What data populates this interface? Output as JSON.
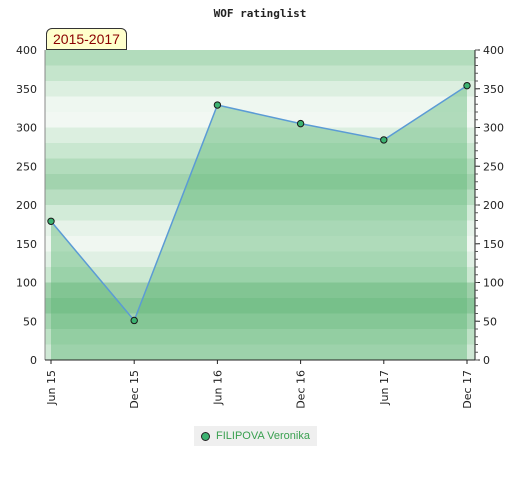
{
  "chart_data": {
    "type": "area",
    "title": "WOF ratinglist",
    "period_label": "2015-2017",
    "categories": [
      "Jun 15",
      "Dec 15",
      "Jun 16",
      "Dec 16",
      "Jun 17",
      "Dec 17"
    ],
    "series": [
      {
        "name": "FILIPOVA Veronika",
        "values": [
          179,
          51,
          329,
          305,
          284,
          354
        ]
      }
    ],
    "ylim": [
      0,
      400
    ],
    "yticks": [
      "0",
      "50",
      "100",
      "150",
      "200",
      "250",
      "300",
      "350",
      "400"
    ],
    "y_axis_right": true,
    "legend_position": "bottom",
    "colors": {
      "line": "#5b9bd5",
      "area": "#5fb878",
      "marker": "#3cb371",
      "band_dark": "#7cc08f",
      "band_light": "#f0f7f1"
    }
  }
}
